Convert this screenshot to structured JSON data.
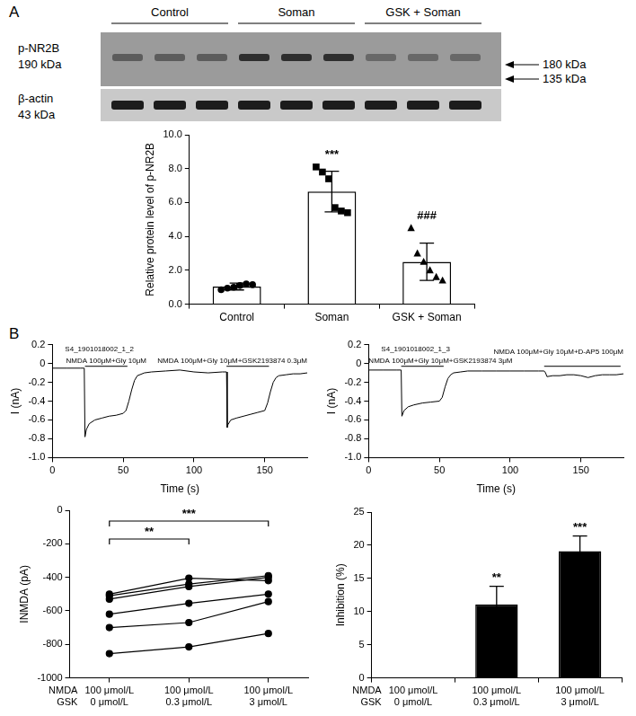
{
  "panel_labels": [
    "A",
    "B"
  ],
  "blot": {
    "groups": [
      "Control",
      "Soman",
      "GSK + Soman"
    ],
    "rows": [
      {
        "label": "p-NR2B",
        "size": "190 kDa"
      },
      {
        "label": "β-actin",
        "size": "43 kDa"
      }
    ],
    "markers": [
      "180 kDa",
      "135 kDa"
    ]
  },
  "chart_data": [
    {
      "type": "bar",
      "categories": [
        "Control",
        "Soman",
        "GSK + Soman"
      ],
      "values": [
        1.04,
        6.65,
        2.5
      ],
      "error": [
        0.2,
        1.2,
        1.1
      ],
      "color": "#ffffff",
      "points": [
        {
          "marker": "circle",
          "values": [
            0.85,
            0.95,
            1.0,
            1.1,
            1.2,
            1.15
          ]
        },
        {
          "marker": "square",
          "values": [
            8.1,
            7.8,
            7.4,
            5.7,
            5.5,
            5.4
          ]
        },
        {
          "marker": "triangle",
          "values": [
            4.5,
            3.0,
            2.5,
            2.0,
            1.6,
            1.4
          ]
        }
      ],
      "annotations": [
        null,
        "***",
        "###"
      ],
      "y_label": "Relative protein level of p-NR2B",
      "ylim": [
        0,
        10
      ],
      "yticks": [
        {
          "value": 0,
          "label": "0.0"
        },
        {
          "value": 2,
          "label": "2.0"
        },
        {
          "value": 4,
          "label": "4.0"
        },
        {
          "value": 6,
          "label": "6.0"
        },
        {
          "value": 8,
          "label": "8.0"
        },
        {
          "value": 10,
          "label": "10.0"
        }
      ],
      "grid": false
    },
    {
      "type": "line",
      "title": "S4_1901018002_1_2",
      "x": [
        0,
        10,
        20,
        22.5,
        23,
        24,
        26,
        30,
        35,
        40,
        45,
        50,
        52,
        54,
        56,
        58,
        60,
        65,
        70,
        80,
        90,
        100,
        110,
        120,
        123,
        123.5,
        124,
        126,
        130,
        135,
        140,
        145,
        150,
        152,
        154,
        156,
        158,
        160,
        165,
        170,
        175,
        180
      ],
      "values": [
        -0.05,
        -0.05,
        -0.05,
        -0.05,
        -0.78,
        -0.7,
        -0.64,
        -0.6,
        -0.58,
        -0.56,
        -0.55,
        -0.53,
        -0.5,
        -0.4,
        -0.28,
        -0.18,
        -0.13,
        -0.1,
        -0.09,
        -0.08,
        -0.07,
        -0.09,
        -0.1,
        -0.09,
        -0.09,
        -0.68,
        -0.65,
        -0.6,
        -0.58,
        -0.56,
        -0.54,
        -0.52,
        -0.5,
        -0.42,
        -0.3,
        -0.2,
        -0.15,
        -0.13,
        -0.12,
        -0.11,
        -0.11,
        -0.1
      ],
      "color": "#000000",
      "annotations": [
        {
          "text": "NMDA 100μM+Gly 10μM",
          "start": 23,
          "end": 53,
          "y": -0.03
        },
        {
          "text": "NMDA 100μM+Gly 10μM+GSK2193874 0.3μM",
          "start": 123,
          "end": 153,
          "y": -0.03
        }
      ],
      "x_label": "Time (s)",
      "y_label": "I (nA)",
      "xlim": [
        0,
        180
      ],
      "xticks": [
        0,
        50,
        100,
        150
      ],
      "ylim": [
        -1,
        0.2
      ],
      "yticks": [
        {
          "value": -1,
          "label": "-1.0"
        },
        -0.8,
        -0.6,
        -0.4,
        -0.2,
        0,
        0.2
      ],
      "grid": false
    },
    {
      "type": "line",
      "title": "S4_1901018002_1_3",
      "x": [
        0,
        10,
        20,
        23,
        23.5,
        25,
        28,
        32,
        38,
        44,
        50,
        52,
        54,
        56,
        58,
        60,
        65,
        70,
        80,
        90,
        100,
        110,
        120,
        124,
        125,
        126,
        130,
        135,
        140,
        145,
        150,
        155,
        160,
        165,
        170,
        175,
        180
      ],
      "values": [
        -0.07,
        -0.07,
        -0.07,
        -0.07,
        -0.56,
        -0.5,
        -0.46,
        -0.44,
        -0.42,
        -0.41,
        -0.4,
        -0.36,
        -0.25,
        -0.16,
        -0.12,
        -0.1,
        -0.09,
        -0.08,
        -0.08,
        -0.08,
        -0.08,
        -0.08,
        -0.08,
        -0.08,
        -0.1,
        -0.14,
        -0.13,
        -0.13,
        -0.12,
        -0.12,
        -0.13,
        -0.15,
        -0.13,
        -0.12,
        -0.12,
        -0.12,
        -0.11
      ],
      "color": "#000000",
      "annotations": [
        {
          "text": "NMDA 100μM+Gly 10μM+GSK2193874 3μM",
          "start": 23,
          "end": 53,
          "y": -0.03
        },
        {
          "text": "NMDA 100μM+Gly 10μM+D-AP5 100μM",
          "start": 124,
          "end": 178,
          "y": -0.03
        }
      ],
      "x_label": "Time (s)",
      "y_label": "I (nA)",
      "xlim": [
        0,
        180
      ],
      "xticks": [
        0,
        50,
        100,
        150
      ],
      "ylim": [
        -1,
        0.2
      ],
      "yticks": [
        {
          "value": -1,
          "label": "-1.0"
        },
        -0.8,
        -0.6,
        -0.4,
        -0.2,
        0,
        0.2
      ],
      "grid": false
    },
    {
      "type": "line",
      "categories": [
        [
          "100 μmol/L",
          "0 μmol/L"
        ],
        [
          "100 μmol/L",
          "0.3 μmol/L"
        ],
        [
          "100 μmol/L",
          "3 μmol/L"
        ]
      ],
      "row_labels": [
        "NMDA",
        "GSK"
      ],
      "series": [
        {
          "values": [
            -500,
            -405,
            -420
          ],
          "color": "#000000",
          "marker": "circle"
        },
        {
          "values": [
            -510,
            -440,
            -390
          ],
          "color": "#000000",
          "marker": "circle"
        },
        {
          "values": [
            -530,
            -455,
            -400
          ],
          "color": "#000000",
          "marker": "circle"
        },
        {
          "values": [
            -620,
            -555,
            -500
          ],
          "color": "#000000",
          "marker": "circle"
        },
        {
          "values": [
            -700,
            -670,
            -545
          ],
          "color": "#000000",
          "marker": "circle"
        },
        {
          "values": [
            -855,
            -815,
            -735
          ],
          "color": "#000000",
          "marker": "circle"
        }
      ],
      "brackets": [
        {
          "between": [
            "0 μmol/L",
            "0.3 μmol/L"
          ],
          "text": "**"
        },
        {
          "between": [
            "0 μmol/L",
            "3 μmol/L"
          ],
          "text": "***"
        }
      ],
      "y_label": "INMDA (pA)",
      "ylim": [
        -1000,
        0
      ],
      "yticks": [
        -1000,
        -800,
        -600,
        -400,
        -200,
        0
      ],
      "grid": false
    },
    {
      "type": "bar",
      "categories": [
        [
          "100 μmol/L",
          "0 μmol/L"
        ],
        [
          "100 μmol/L",
          "0.3 μmol/L"
        ],
        [
          "100 μmol/L",
          "3 μmol/L"
        ]
      ],
      "row_labels": [
        "NMDA",
        "GSK"
      ],
      "values": [
        0,
        11.1,
        19.1
      ],
      "error": [
        null,
        2.7,
        2.3
      ],
      "color": "#000000",
      "annotations": [
        null,
        "**",
        "***"
      ],
      "y_label": "Inhibition (%)",
      "ylim": [
        0,
        25
      ],
      "yticks": [
        0,
        5,
        10,
        15,
        20,
        25
      ],
      "grid": false
    }
  ]
}
